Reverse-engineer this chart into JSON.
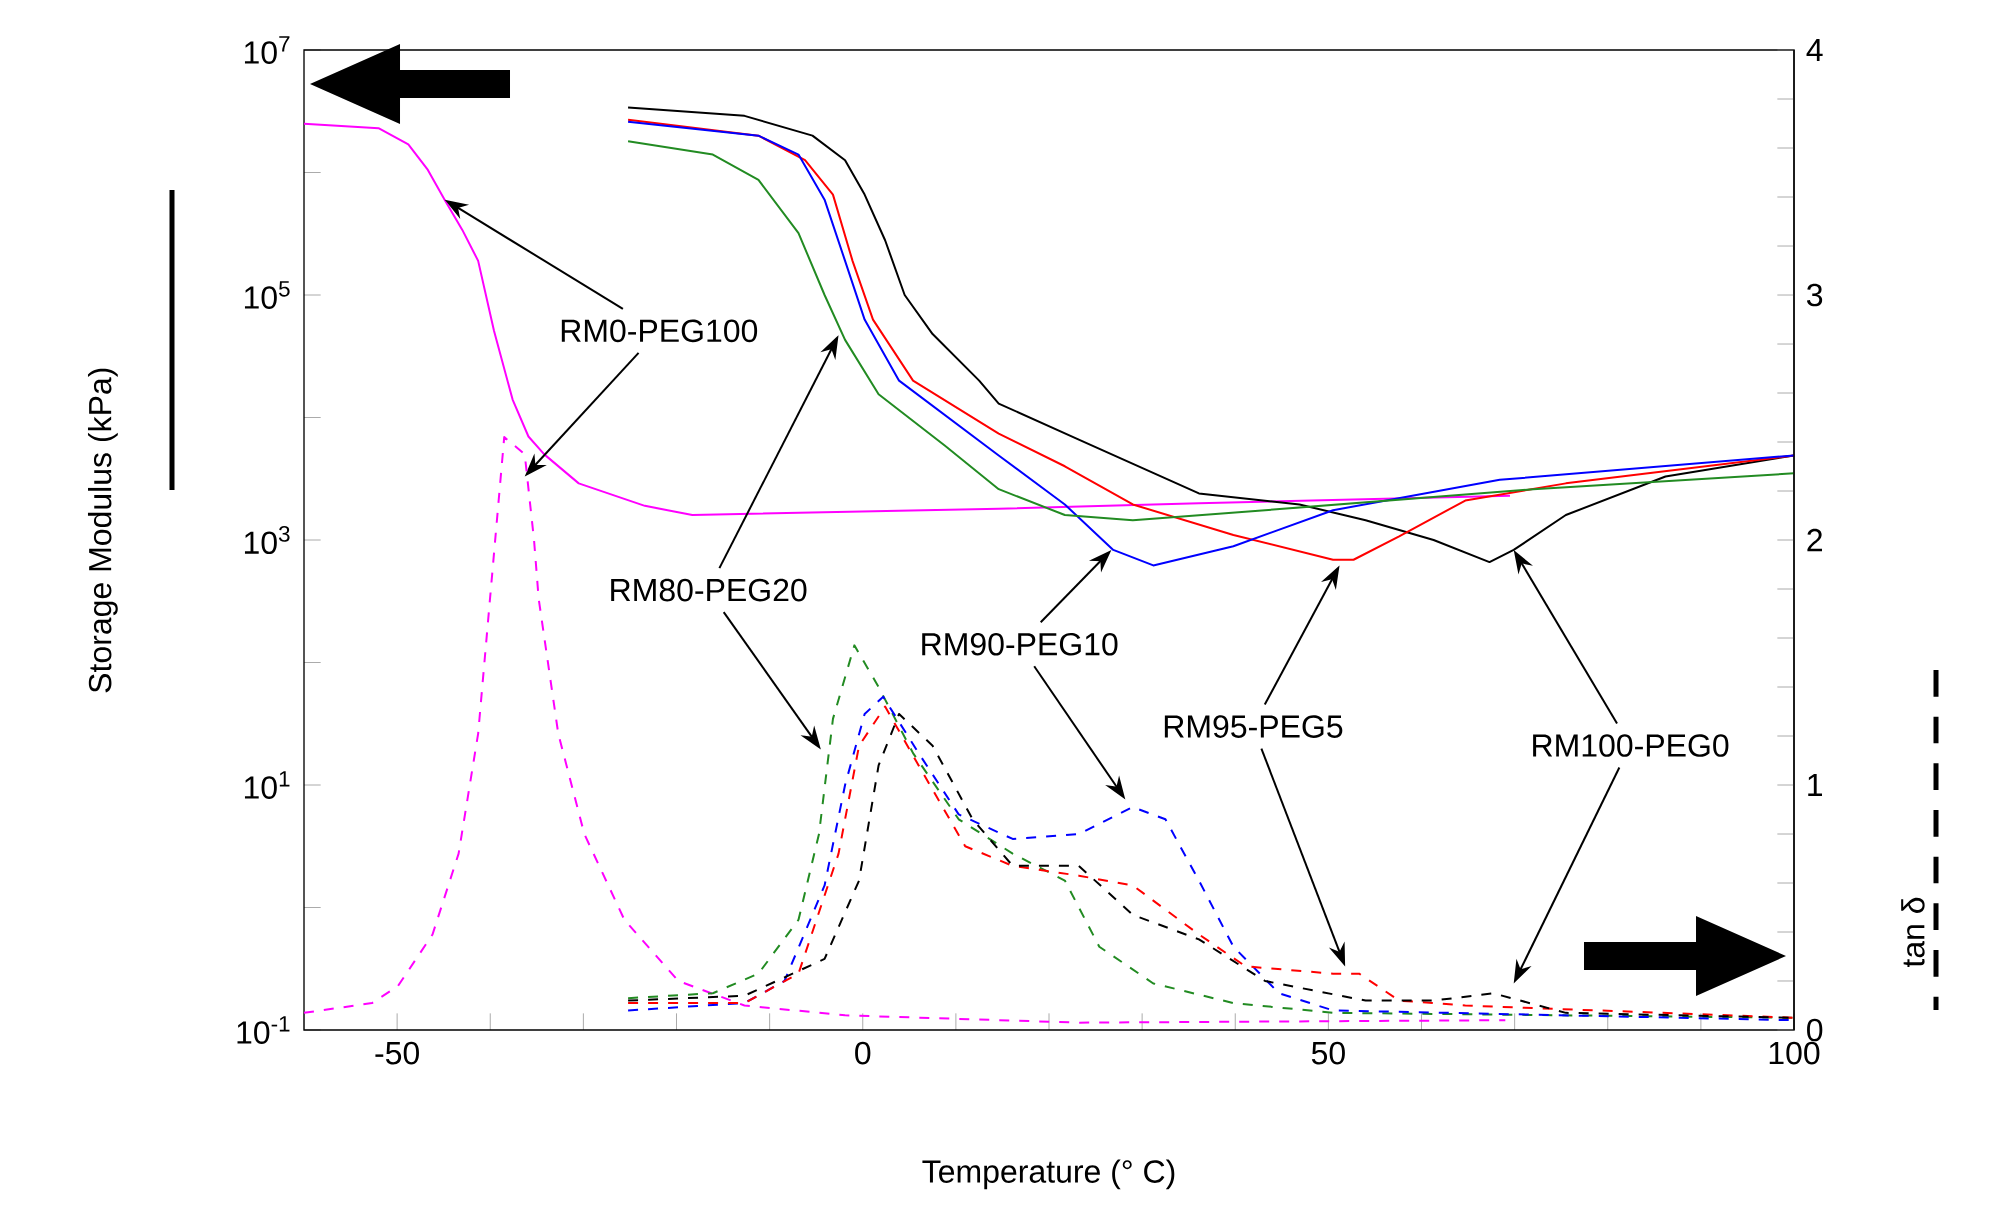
{
  "chart_data": {
    "type": "line",
    "xlabel": "Temperature (° C)",
    "ylabel": "Storage Modulus (kPa)",
    "y2label": "tan δ",
    "log": "y",
    "xlim": [
      -60,
      100
    ],
    "xticks": [
      {
        "value": -60,
        "label": null
      },
      -50,
      {
        "value": -40,
        "label": null
      },
      {
        "value": -30,
        "label": null
      },
      {
        "value": -20,
        "label": null
      },
      {
        "value": -10,
        "label": null
      },
      0,
      {
        "value": 10,
        "label": null
      },
      {
        "value": 20,
        "label": null
      },
      {
        "value": 30,
        "label": null
      },
      {
        "value": 40,
        "label": null
      },
      50,
      {
        "value": 60,
        "label": null
      },
      {
        "value": 70,
        "label": null
      },
      {
        "value": 80,
        "label": null
      },
      {
        "value": 90,
        "label": null
      },
      100
    ],
    "ylim": [
      0.1,
      10000000
    ],
    "yticks": [
      {
        "value": 0.1,
        "label": "10$^{-1}$"
      },
      {
        "value": 1,
        "label": null
      },
      {
        "value": 10,
        "label": "10$^{1}$"
      },
      {
        "value": 100,
        "label": null
      },
      {
        "value": 1000,
        "label": "10$^{3}$"
      },
      {
        "value": 10000,
        "label": null
      },
      {
        "value": 100000,
        "label": "10$^{5}$"
      },
      {
        "value": 1000000,
        "label": null
      },
      {
        "value": 10000000,
        "label": "10$^{7}$"
      }
    ],
    "y2lim": [
      0,
      4
    ],
    "y2ticks": [
      0,
      {
        "value": 0.2,
        "label": null
      },
      {
        "value": 0.4,
        "label": null
      },
      {
        "value": 0.6,
        "label": null
      },
      {
        "value": 0.8,
        "label": null
      },
      1,
      {
        "value": 1.2,
        "label": null
      },
      {
        "value": 1.4,
        "label": null
      },
      {
        "value": 1.6,
        "label": null
      },
      {
        "value": 1.8,
        "label": null
      },
      2,
      {
        "value": 2.2,
        "label": null
      },
      {
        "value": 2.4,
        "label": null
      },
      {
        "value": 2.6,
        "label": null
      },
      {
        "value": 2.8,
        "label": null
      },
      3,
      {
        "value": 3.2,
        "label": null
      },
      {
        "value": 3.4,
        "label": null
      },
      {
        "value": 3.6,
        "label": null
      },
      {
        "value": 3.8,
        "label": null
      },
      4
    ],
    "annotations": [
      {
        "text": "RM0-PEG100",
        "x": -44.9,
        "y": 600000
      },
      {
        "text": "RM80-PEG20",
        "x": -2.6,
        "y": 47000
      },
      {
        "text": "RM90-PEG10",
        "x": 26.7,
        "y": 830
      },
      {
        "text": "RM95-PEG5",
        "x": 51.2,
        "y": 620
      },
      {
        "text": "RM100-PEG0",
        "x": 69.9,
        "y": 830
      }
    ],
    "series": [
      {
        "color": "#ff00ff",
        "line_style": "solid",
        "x": [
          -60,
          -52.0,
          -48.8,
          -46.7,
          -44.9,
          -43.0,
          -41.3,
          -39.6,
          -37.6,
          -35.9,
          -34.2,
          -30.5,
          -23.4,
          -18.3,
          14.6,
          36.1,
          69.5
        ],
        "values": [
          2500000,
          2300000,
          1700000,
          1050000,
          600000,
          340000,
          190000,
          51000,
          14000,
          7000,
          5000,
          2900,
          1900,
          1600,
          1800,
          2000,
          2300
        ]
      },
      {
        "color": "#000000",
        "line_style": "solid",
        "x": [
          -25.2,
          -12.7,
          -5.4,
          -1.9,
          0.2,
          2.4,
          4.5,
          7.5,
          12.5,
          14.6,
          23.2,
          36.1,
          46.9,
          54.0,
          61.3,
          67.3,
          69.9,
          75.5,
          86.2,
          100
        ],
        "values": [
          3400000,
          2900000,
          2000000,
          1260000,
          660000,
          280000,
          100000,
          48000,
          20000,
          13000,
          6600,
          2400,
          1950,
          1450,
          1000,
          660,
          830,
          1600,
          3300,
          4900
        ]
      },
      {
        "color": "#ff0000",
        "line_style": "solid",
        "x": [
          -25.2,
          -11.2,
          -6.2,
          -3.2,
          -1.1,
          1.1,
          5.4,
          14.6,
          21.7,
          29.0,
          39.8,
          50.5,
          52.7,
          57.6,
          64.7,
          75.5,
          100
        ],
        "values": [
          2700000,
          2000000,
          1260000,
          660000,
          190000,
          63000,
          20000,
          7400,
          4000,
          1950,
          1100,
          690,
          690,
          1070,
          2100,
          2900,
          4900
        ]
      },
      {
        "color": "#0000ff",
        "line_style": "solid",
        "x": [
          -25.2,
          -11.2,
          -6.9,
          -4.1,
          -1.9,
          0.2,
          3.9,
          14.6,
          21.7,
          26.9,
          31.2,
          39.8,
          50.5,
          68.4,
          100
        ],
        "values": [
          2600000,
          2000000,
          1400000,
          600000,
          190000,
          63000,
          20000,
          4900,
          1950,
          830,
          620,
          890,
          1750,
          3100,
          4900
        ]
      },
      {
        "color": "#228b22",
        "line_style": "solid",
        "x": [
          -25.2,
          -16.1,
          -11.2,
          -6.9,
          -4.1,
          -1.9,
          1.7,
          8.8,
          14.6,
          21.7,
          29.0,
          43.2,
          72.0,
          100
        ],
        "values": [
          1800000,
          1400000,
          870000,
          320000,
          100000,
          43000,
          15500,
          5900,
          2600,
          1600,
          1450,
          1750,
          2600,
          3500
        ]
      },
      {
        "color": "#ff00ff",
        "line_style": "dashed",
        "axis": "y2",
        "x": [
          -60,
          -52.7,
          -49.9,
          -46.2,
          -43.4,
          -41.3,
          -38.5,
          -36.3,
          -35.3,
          -34.8,
          -32.7,
          -29.9,
          -25.6,
          -19.8,
          -12.7,
          -1.9,
          23.2,
          69.0
        ],
        "values": [
          0.07,
          0.11,
          0.18,
          0.39,
          0.72,
          1.21,
          2.42,
          2.35,
          2.0,
          1.76,
          1.21,
          0.8,
          0.45,
          0.2,
          0.1,
          0.06,
          0.03,
          0.04
        ]
      },
      {
        "color": "#228b22",
        "line_style": "dashed",
        "axis": "y2",
        "x": [
          -25.2,
          -16.1,
          -11.2,
          -6.9,
          -4.7,
          -3.2,
          -0.9,
          1.7,
          5.4,
          10.3,
          16.1,
          21.7,
          25.4,
          31.2,
          39.8,
          50.5,
          100
        ],
        "values": [
          0.13,
          0.15,
          0.23,
          0.45,
          0.8,
          1.27,
          1.57,
          1.4,
          1.13,
          0.86,
          0.72,
          0.61,
          0.34,
          0.19,
          0.11,
          0.07,
          0.05
        ]
      },
      {
        "color": "#0000ff",
        "line_style": "dashed",
        "axis": "y2",
        "x": [
          -25.2,
          -12.7,
          -8.4,
          -4.1,
          -1.9,
          0.2,
          2.2,
          6.0,
          10.3,
          16.1,
          23.2,
          29.0,
          32.5,
          36.1,
          39.8,
          44.7,
          50.5,
          100
        ],
        "values": [
          0.08,
          0.11,
          0.2,
          0.59,
          1.0,
          1.29,
          1.36,
          1.13,
          0.88,
          0.78,
          0.8,
          0.91,
          0.86,
          0.61,
          0.34,
          0.15,
          0.08,
          0.04
        ]
      },
      {
        "color": "#ff0000",
        "line_style": "dashed",
        "axis": "y2",
        "x": [
          -25.2,
          -12.7,
          -6.9,
          -2.6,
          -0.4,
          2.4,
          6.0,
          11.0,
          16.1,
          23.2,
          29.0,
          36.1,
          41.1,
          50.5,
          53.3,
          57.6,
          64.7,
          100
        ],
        "values": [
          0.11,
          0.11,
          0.23,
          0.72,
          1.16,
          1.32,
          1.08,
          0.75,
          0.67,
          0.63,
          0.59,
          0.39,
          0.26,
          0.23,
          0.23,
          0.12,
          0.1,
          0.05
        ]
      },
      {
        "color": "#000000",
        "line_style": "dashed",
        "axis": "y2",
        "x": [
          -25.2,
          -12.7,
          -4.1,
          -0.4,
          1.7,
          3.9,
          7.5,
          11.8,
          16.1,
          23.2,
          29.0,
          36.1,
          43.2,
          54.0,
          61.3,
          67.7,
          75.5,
          100
        ],
        "values": [
          0.12,
          0.14,
          0.29,
          0.61,
          1.08,
          1.29,
          1.16,
          0.86,
          0.67,
          0.67,
          0.47,
          0.37,
          0.2,
          0.12,
          0.12,
          0.15,
          0.07,
          0.05
        ]
      }
    ]
  }
}
